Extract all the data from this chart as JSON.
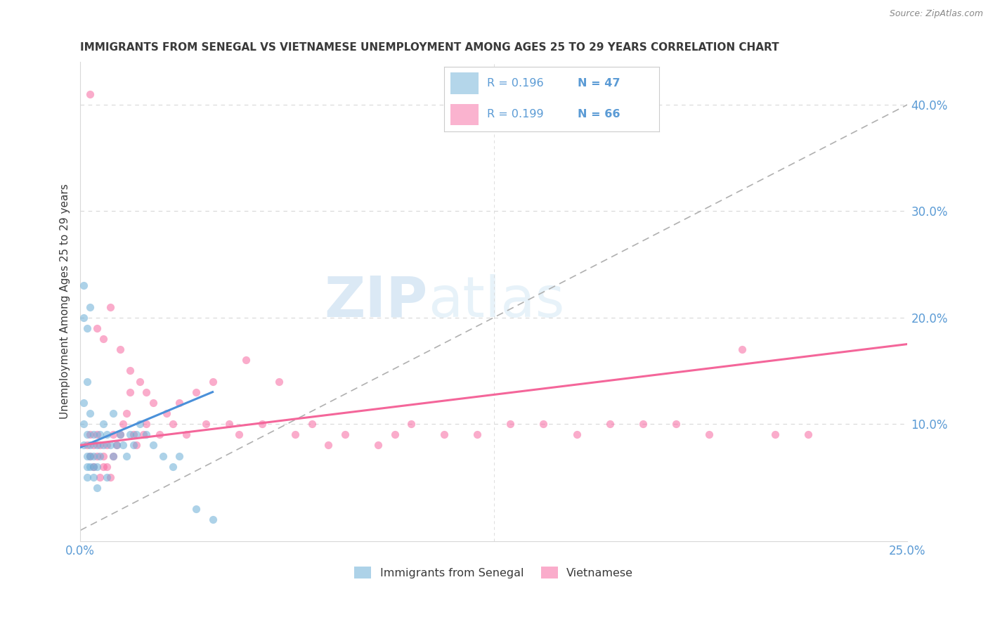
{
  "title": "IMMIGRANTS FROM SENEGAL VS VIETNAMESE UNEMPLOYMENT AMONG AGES 25 TO 29 YEARS CORRELATION CHART",
  "source": "Source: ZipAtlas.com",
  "ylabel": "Unemployment Among Ages 25 to 29 years",
  "xlim": [
    0.0,
    0.25
  ],
  "ylim": [
    -0.01,
    0.44
  ],
  "right_yticks": [
    0.1,
    0.2,
    0.3,
    0.4
  ],
  "right_yticklabels": [
    "10.0%",
    "20.0%",
    "30.0%",
    "40.0%"
  ],
  "bottom_xticks": [
    0.0,
    0.05,
    0.1,
    0.15,
    0.2,
    0.25
  ],
  "bottom_xticklabels": [
    "0.0%",
    "",
    "",
    "",
    "",
    "25.0%"
  ],
  "watermark_part1": "ZIP",
  "watermark_part2": "atlas",
  "senegal_x": [
    0.001,
    0.001,
    0.001,
    0.001,
    0.002,
    0.002,
    0.002,
    0.002,
    0.002,
    0.003,
    0.003,
    0.003,
    0.003,
    0.004,
    0.004,
    0.004,
    0.004,
    0.005,
    0.005,
    0.005,
    0.006,
    0.006,
    0.007,
    0.007,
    0.008,
    0.008,
    0.009,
    0.01,
    0.01,
    0.011,
    0.012,
    0.013,
    0.014,
    0.015,
    0.016,
    0.017,
    0.018,
    0.02,
    0.022,
    0.025,
    0.028,
    0.03,
    0.035,
    0.04,
    0.001,
    0.002,
    0.003
  ],
  "senegal_y": [
    0.08,
    0.1,
    0.12,
    0.2,
    0.07,
    0.09,
    0.05,
    0.06,
    0.14,
    0.08,
    0.07,
    0.06,
    0.11,
    0.09,
    0.06,
    0.05,
    0.07,
    0.08,
    0.06,
    0.04,
    0.07,
    0.09,
    0.08,
    0.1,
    0.09,
    0.05,
    0.08,
    0.07,
    0.11,
    0.08,
    0.09,
    0.08,
    0.07,
    0.09,
    0.08,
    0.09,
    0.1,
    0.09,
    0.08,
    0.07,
    0.06,
    0.07,
    0.02,
    0.01,
    0.23,
    0.19,
    0.21
  ],
  "vietnamese_x": [
    0.002,
    0.003,
    0.003,
    0.004,
    0.004,
    0.005,
    0.005,
    0.006,
    0.006,
    0.007,
    0.007,
    0.008,
    0.008,
    0.009,
    0.01,
    0.01,
    0.011,
    0.012,
    0.013,
    0.014,
    0.015,
    0.016,
    0.017,
    0.018,
    0.019,
    0.02,
    0.022,
    0.024,
    0.026,
    0.028,
    0.03,
    0.032,
    0.035,
    0.038,
    0.04,
    0.045,
    0.048,
    0.05,
    0.055,
    0.06,
    0.065,
    0.07,
    0.075,
    0.08,
    0.09,
    0.095,
    0.1,
    0.11,
    0.12,
    0.13,
    0.14,
    0.15,
    0.16,
    0.17,
    0.18,
    0.19,
    0.2,
    0.21,
    0.22,
    0.003,
    0.005,
    0.007,
    0.009,
    0.012,
    0.015,
    0.02
  ],
  "vietnamese_y": [
    0.08,
    0.07,
    0.09,
    0.08,
    0.06,
    0.07,
    0.09,
    0.08,
    0.05,
    0.06,
    0.07,
    0.08,
    0.06,
    0.05,
    0.09,
    0.07,
    0.08,
    0.09,
    0.1,
    0.11,
    0.13,
    0.09,
    0.08,
    0.14,
    0.09,
    0.1,
    0.12,
    0.09,
    0.11,
    0.1,
    0.12,
    0.09,
    0.13,
    0.1,
    0.14,
    0.1,
    0.09,
    0.16,
    0.1,
    0.14,
    0.09,
    0.1,
    0.08,
    0.09,
    0.08,
    0.09,
    0.1,
    0.09,
    0.09,
    0.1,
    0.1,
    0.09,
    0.1,
    0.1,
    0.1,
    0.09,
    0.17,
    0.09,
    0.09,
    0.41,
    0.19,
    0.18,
    0.21,
    0.17,
    0.15,
    0.13
  ],
  "senegal_color": "#6baed6",
  "vietnamese_color": "#f768a1",
  "senegal_line_color": "#4a90d9",
  "vietnamese_line_color": "#f4669a",
  "trend_line_color": "#b0b0b0",
  "background_color": "#ffffff",
  "title_color": "#3a3a3a",
  "axis_color": "#3a3a3a",
  "tick_color_blue": "#5b9bd5",
  "grid_color": "#d8d8d8",
  "legend_R1": "0.196",
  "legend_N1": "47",
  "legend_R2": "0.199",
  "legend_N2": "66",
  "legend_label1": "Immigrants from Senegal",
  "legend_label2": "Vietnamese"
}
